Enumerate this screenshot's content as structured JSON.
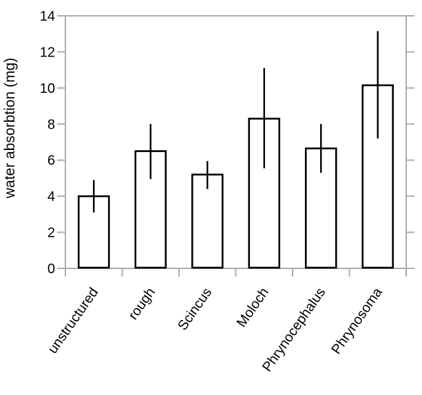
{
  "chart_data": {
    "type": "bar",
    "title": "",
    "xlabel": "",
    "ylabel": "water absorbtion (mg)",
    "ylim": [
      0,
      14
    ],
    "yticks": [
      0,
      2,
      4,
      6,
      8,
      10,
      12,
      14
    ],
    "categories": [
      "unstructured",
      "rough",
      "Scincus",
      "Moloch",
      "Phrynocephalus",
      "Phrynosoma"
    ],
    "values": [
      4.0,
      6.5,
      5.2,
      8.3,
      6.65,
      10.15
    ],
    "error_low": [
      3.1,
      4.95,
      4.4,
      5.55,
      5.3,
      7.2
    ],
    "error_high": [
      4.9,
      8.0,
      5.95,
      11.1,
      8.0,
      13.15
    ],
    "grid": false,
    "legend": null,
    "layout_hints": {
      "x_label_rotation_deg": 55,
      "ticks_outward": true,
      "framed_plot_box": true,
      "error_bar_caps": false
    },
    "styles": {
      "bar_fill": "#ffffff",
      "bar_stroke": "#000000",
      "error_color": "#000000",
      "axis_color": "#adadad",
      "text_color": "#000000",
      "background": "#ffffff"
    }
  }
}
